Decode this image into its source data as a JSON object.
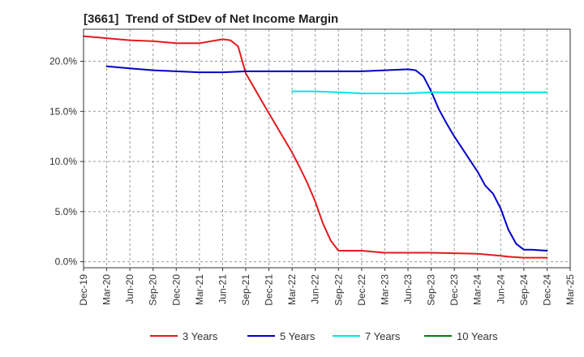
{
  "chart_data": {
    "type": "line",
    "title": "[3661]  Trend of StDev of Net Income Margin",
    "xlabel": "",
    "ylabel": "",
    "x_ticks": [
      "Dec-19",
      "Mar-20",
      "Jun-20",
      "Sep-20",
      "Dec-20",
      "Mar-21",
      "Jun-21",
      "Sep-21",
      "Dec-21",
      "Mar-22",
      "Jun-22",
      "Sep-22",
      "Dec-22",
      "Mar-23",
      "Jun-23",
      "Sep-23",
      "Dec-23",
      "Mar-24",
      "Jun-24",
      "Sep-24",
      "Dec-24",
      "Mar-25"
    ],
    "y_ticks": [
      "0.0%",
      "5.0%",
      "10.0%",
      "15.0%",
      "20.0%"
    ],
    "y_tick_values": [
      0,
      5,
      10,
      15,
      20
    ],
    "ylim": [
      -0.6,
      23.2
    ],
    "xlim": [
      "Dec-19",
      "Mar-25"
    ],
    "grid": true,
    "legend_position": "bottom",
    "series": [
      {
        "name": "3 Years",
        "color": "#e31a1c",
        "x": [
          "Dec-19",
          "Mar-20",
          "Jun-20",
          "Sep-20",
          "Dec-20",
          "Mar-21",
          "Jun-21",
          "Jul-21",
          "Aug-21",
          "Sep-21",
          "Dec-21",
          "Mar-22",
          "Apr-22",
          "May-22",
          "Jun-22",
          "Jul-22",
          "Aug-22",
          "Sep-22",
          "Dec-22",
          "Mar-23",
          "Jun-23",
          "Sep-23",
          "Dec-23",
          "Mar-24",
          "Jun-24",
          "Jul-24",
          "Aug-24",
          "Sep-24",
          "Oct-24",
          "Nov-24",
          "Dec-24"
        ],
        "values": [
          22.5,
          22.3,
          22.1,
          22.0,
          21.8,
          21.8,
          22.2,
          22.1,
          21.5,
          18.8,
          14.8,
          10.9,
          9.4,
          7.8,
          6.0,
          3.8,
          2.1,
          1.1,
          1.1,
          0.9,
          0.9,
          0.9,
          0.85,
          0.8,
          0.6,
          0.5,
          0.45,
          0.4,
          0.4,
          0.4,
          0.4
        ]
      },
      {
        "name": "5 Years",
        "color": "#0000cc",
        "x": [
          "Mar-20",
          "Jun-20",
          "Sep-20",
          "Dec-20",
          "Mar-21",
          "Jun-21",
          "Sep-21",
          "Dec-21",
          "Mar-22",
          "Jun-22",
          "Sep-22",
          "Dec-22",
          "Mar-23",
          "Jun-23",
          "Jul-23",
          "Aug-23",
          "Sep-23",
          "Oct-23",
          "Nov-23",
          "Dec-23",
          "Mar-24",
          "Apr-24",
          "May-24",
          "Jun-24",
          "Jul-24",
          "Aug-24",
          "Sep-24",
          "Oct-24",
          "Nov-24",
          "Dec-24"
        ],
        "values": [
          19.5,
          19.3,
          19.1,
          19.0,
          18.9,
          18.9,
          19.0,
          19.0,
          19.0,
          19.0,
          19.0,
          19.0,
          19.1,
          19.2,
          19.1,
          18.5,
          17.0,
          15.2,
          13.8,
          12.5,
          9.0,
          7.6,
          6.8,
          5.3,
          3.2,
          1.8,
          1.2,
          1.2,
          1.15,
          1.1
        ]
      },
      {
        "name": "7 Years",
        "color": "#00e5ee",
        "x": [
          "Mar-22",
          "Jun-22",
          "Sep-22",
          "Dec-22",
          "Mar-23",
          "Jun-23",
          "Sep-23",
          "Dec-23",
          "Mar-24",
          "Jun-24",
          "Sep-24",
          "Dec-24"
        ],
        "values": [
          17.0,
          17.0,
          16.9,
          16.8,
          16.8,
          16.8,
          16.9,
          16.9,
          16.9,
          16.9,
          16.9,
          16.9
        ]
      },
      {
        "name": "10 Years",
        "color": "#008000",
        "x": [],
        "values": []
      }
    ]
  }
}
